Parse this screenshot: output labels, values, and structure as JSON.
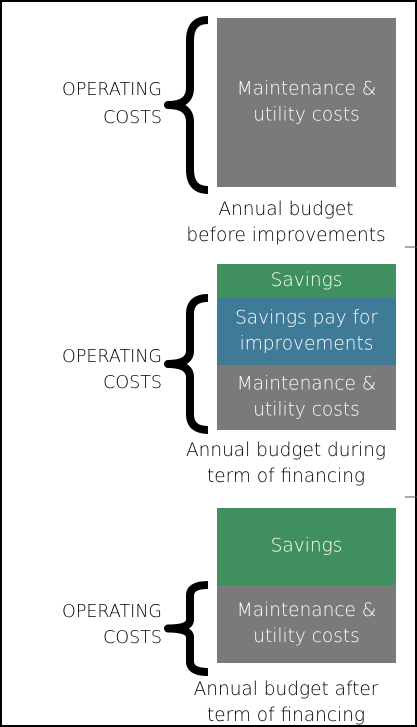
{
  "panels": [
    {
      "label": [
        "OPERATING",
        "COSTS"
      ],
      "blocks": [
        {
          "lines": [
            "Maintenance &",
            "utility costs"
          ],
          "kind": "costs"
        }
      ],
      "caption": [
        "Annual budget",
        "before improvements"
      ]
    },
    {
      "label": [
        "OPERATING",
        "COSTS"
      ],
      "blocks": [
        {
          "lines": [
            "Savings"
          ],
          "kind": "savings"
        },
        {
          "lines": [
            "Savings pay for",
            "improvements"
          ],
          "kind": "payment"
        },
        {
          "lines": [
            "Maintenance &",
            "utility costs"
          ],
          "kind": "costs"
        }
      ],
      "caption": [
        "Annual budget during",
        "term of financing"
      ]
    },
    {
      "label": [
        "OPERATING",
        "COSTS"
      ],
      "blocks": [
        {
          "lines": [
            "Savings"
          ],
          "kind": "savings"
        },
        {
          "lines": [
            "Maintenance &",
            "utility costs"
          ],
          "kind": "costs"
        }
      ],
      "caption": [
        "Annual budget after",
        "term of financing"
      ]
    }
  ]
}
